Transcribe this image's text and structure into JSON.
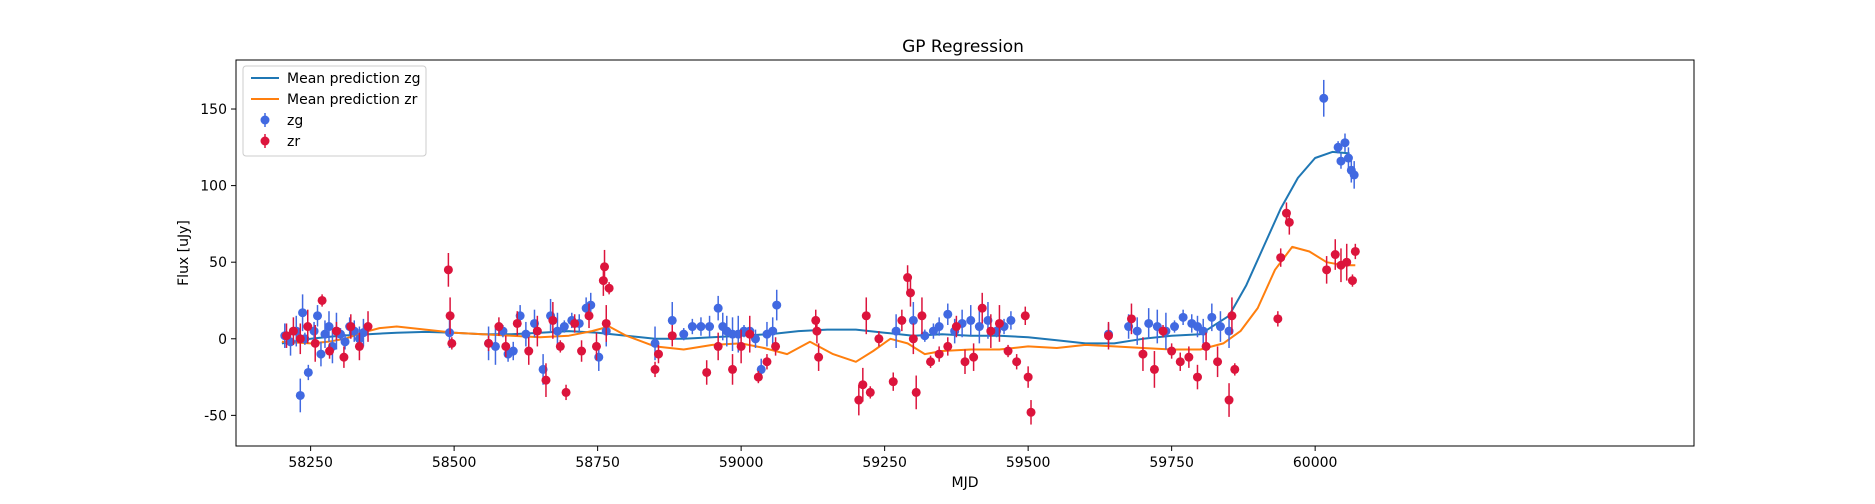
{
  "chart_data": {
    "type": "scatter",
    "title": "GP Regression",
    "xlabel": "MJD",
    "ylabel": "Flux [uJy]",
    "xlim": [
      58120,
      60660
    ],
    "ylim": [
      -70,
      182
    ],
    "xticks": [
      58250,
      58500,
      58750,
      59000,
      59250,
      59500,
      59750,
      60000
    ],
    "yticks": [
      -50,
      0,
      50,
      100,
      150
    ],
    "grid": false,
    "legend": {
      "location": "top-left",
      "entries": [
        {
          "label": "Mean prediction zg",
          "kind": "line",
          "color": "#1f77b4"
        },
        {
          "label": "Mean prediction zr",
          "kind": "line",
          "color": "#ff7f0e"
        },
        {
          "label": "zg",
          "kind": "errorbar",
          "color": "#4169e1"
        },
        {
          "label": "zr",
          "kind": "errorbar",
          "color": "#dc143c"
        }
      ]
    },
    "lines": [
      {
        "name": "Mean prediction zg",
        "color": "#1f77b4",
        "x": [
          58200,
          58250,
          58300,
          58350,
          58400,
          58450,
          58500,
          58550,
          58600,
          58650,
          58700,
          58750,
          58800,
          58850,
          58900,
          58950,
          59000,
          59050,
          59100,
          59150,
          59200,
          59250,
          59300,
          59350,
          59400,
          59450,
          59500,
          59550,
          59600,
          59650,
          59700,
          59750,
          59800,
          59850,
          59880,
          59910,
          59940,
          59970,
          60000,
          60030,
          60060
        ],
        "y": [
          -3,
          0,
          2,
          3,
          4,
          4.5,
          4,
          3,
          3,
          4,
          5,
          4,
          2,
          0,
          0,
          1,
          2,
          3,
          5,
          6,
          6,
          4,
          2,
          3,
          2,
          2,
          1,
          -1,
          -3,
          -3,
          0,
          2,
          3,
          15,
          35,
          60,
          85,
          105,
          118,
          122,
          121
        ]
      },
      {
        "name": "Mean prediction zr",
        "color": "#ff7f0e",
        "x": [
          58200,
          58250,
          58280,
          58310,
          58340,
          58370,
          58400,
          58450,
          58500,
          58550,
          58600,
          58650,
          58700,
          58740,
          58770,
          58800,
          58850,
          58900,
          58950,
          59000,
          59040,
          59080,
          59120,
          59160,
          59200,
          59230,
          59260,
          59290,
          59320,
          59350,
          59400,
          59450,
          59500,
          59550,
          59600,
          59650,
          59700,
          59750,
          59800,
          59840,
          59870,
          59900,
          59930,
          59960,
          59990,
          60020,
          60050,
          60070
        ],
        "y": [
          -2,
          -3,
          -2,
          0,
          4,
          7,
          8,
          6,
          4,
          3,
          2,
          1,
          2,
          5,
          8,
          2,
          -5,
          -7,
          -4,
          -3,
          -6,
          -10,
          -2,
          -10,
          -15,
          -8,
          0,
          -3,
          -10,
          -8,
          -7,
          -7,
          -5,
          -6,
          -4,
          -5,
          -6,
          -7,
          -7,
          -3,
          5,
          20,
          45,
          60,
          57,
          50,
          48,
          48
        ]
      }
    ],
    "series": [
      {
        "name": "zg",
        "color": "#4169e1",
        "x": [
          58205,
          58215,
          58225,
          58232,
          58236,
          58240,
          58246,
          58256,
          58262,
          58268,
          58275,
          58282,
          58288,
          58295,
          58302,
          58310,
          58318,
          58326,
          58335,
          58342,
          58492,
          58560,
          58572,
          58585,
          58594,
          58603,
          58615,
          58625,
          58640,
          58655,
          58668,
          58680,
          58692,
          58705,
          58718,
          58730,
          58738,
          58752,
          58765,
          58850,
          58880,
          58900,
          58915,
          58930,
          58945,
          58960,
          58968,
          58975,
          58985,
          58995,
          59005,
          59015,
          59025,
          59035,
          59045,
          59055,
          59062,
          59270,
          59300,
          59320,
          59335,
          59345,
          59360,
          59372,
          59385,
          59400,
          59415,
          59430,
          59445,
          59458,
          59470,
          59640,
          59675,
          59690,
          59710,
          59725,
          59740,
          59755,
          59770,
          59785,
          59795,
          59805,
          59820,
          59835,
          59850,
          60015,
          60040,
          60045,
          60052,
          60058,
          60063,
          60068
        ],
        "y": [
          2,
          -2,
          5,
          -37,
          17,
          0,
          -22,
          5,
          15,
          -10,
          3,
          8,
          -5,
          5,
          3,
          -2,
          8,
          5,
          0,
          4,
          4,
          -3,
          -5,
          5,
          -10,
          -8,
          15,
          3,
          10,
          -20,
          15,
          5,
          8,
          12,
          10,
          20,
          22,
          -12,
          5,
          -3,
          12,
          3,
          8,
          8,
          8,
          20,
          8,
          5,
          3,
          3,
          5,
          5,
          0,
          -20,
          3,
          5,
          22,
          5,
          12,
          2,
          5,
          8,
          16,
          5,
          10,
          12,
          8,
          12,
          5,
          8,
          12,
          3,
          8,
          5,
          10,
          8,
          5,
          8,
          14,
          10,
          8,
          5,
          14,
          8,
          5,
          157,
          125,
          116,
          128,
          118,
          110,
          107
        ]
      },
      {
        "name": "zr",
        "color": "#dc143c",
        "x": [
          58208,
          58220,
          58232,
          58245,
          58258,
          58270,
          58283,
          58295,
          58308,
          58320,
          58335,
          58350,
          58490,
          58493,
          58496,
          58560,
          58578,
          58590,
          58610,
          58630,
          58645,
          58660,
          58672,
          58685,
          58695,
          58710,
          58722,
          58735,
          58748,
          58760,
          58762,
          58765,
          58770,
          58850,
          58856,
          58880,
          58940,
          58960,
          58985,
          59000,
          59015,
          59030,
          59045,
          59060,
          59130,
          59132,
          59135,
          59205,
          59212,
          59218,
          59225,
          59240,
          59265,
          59280,
          59290,
          59295,
          59300,
          59305,
          59315,
          59330,
          59345,
          59360,
          59375,
          59390,
          59405,
          59420,
          59435,
          59450,
          59465,
          59480,
          59495,
          59500,
          59505,
          59640,
          59680,
          59700,
          59720,
          59735,
          59750,
          59765,
          59780,
          59795,
          59810,
          59830,
          59850,
          59855,
          59860,
          59935,
          59940,
          59950,
          59955,
          60020,
          60035,
          60045,
          60055,
          60065,
          60070
        ],
        "y": [
          2,
          5,
          0,
          8,
          -3,
          25,
          -8,
          5,
          -12,
          8,
          -5,
          8,
          45,
          15,
          -3,
          -3,
          8,
          -5,
          10,
          -8,
          5,
          -27,
          12,
          -5,
          -35,
          10,
          -8,
          15,
          -5,
          38,
          47,
          10,
          33,
          -20,
          -10,
          2,
          -22,
          -5,
          -20,
          -5,
          3,
          -25,
          -15,
          -5,
          12,
          5,
          -12,
          -40,
          -30,
          15,
          -35,
          0,
          -28,
          12,
          40,
          30,
          0,
          -35,
          15,
          -15,
          -10,
          -5,
          8,
          -15,
          -12,
          20,
          5,
          10,
          -8,
          -15,
          15,
          -25,
          -48,
          2,
          13,
          -10,
          -20,
          5,
          -8,
          -15,
          -12,
          -25,
          -5,
          -15,
          -40,
          15,
          -20,
          13,
          53,
          82,
          76,
          45,
          55,
          48,
          50,
          38,
          57
        ]
      }
    ]
  }
}
